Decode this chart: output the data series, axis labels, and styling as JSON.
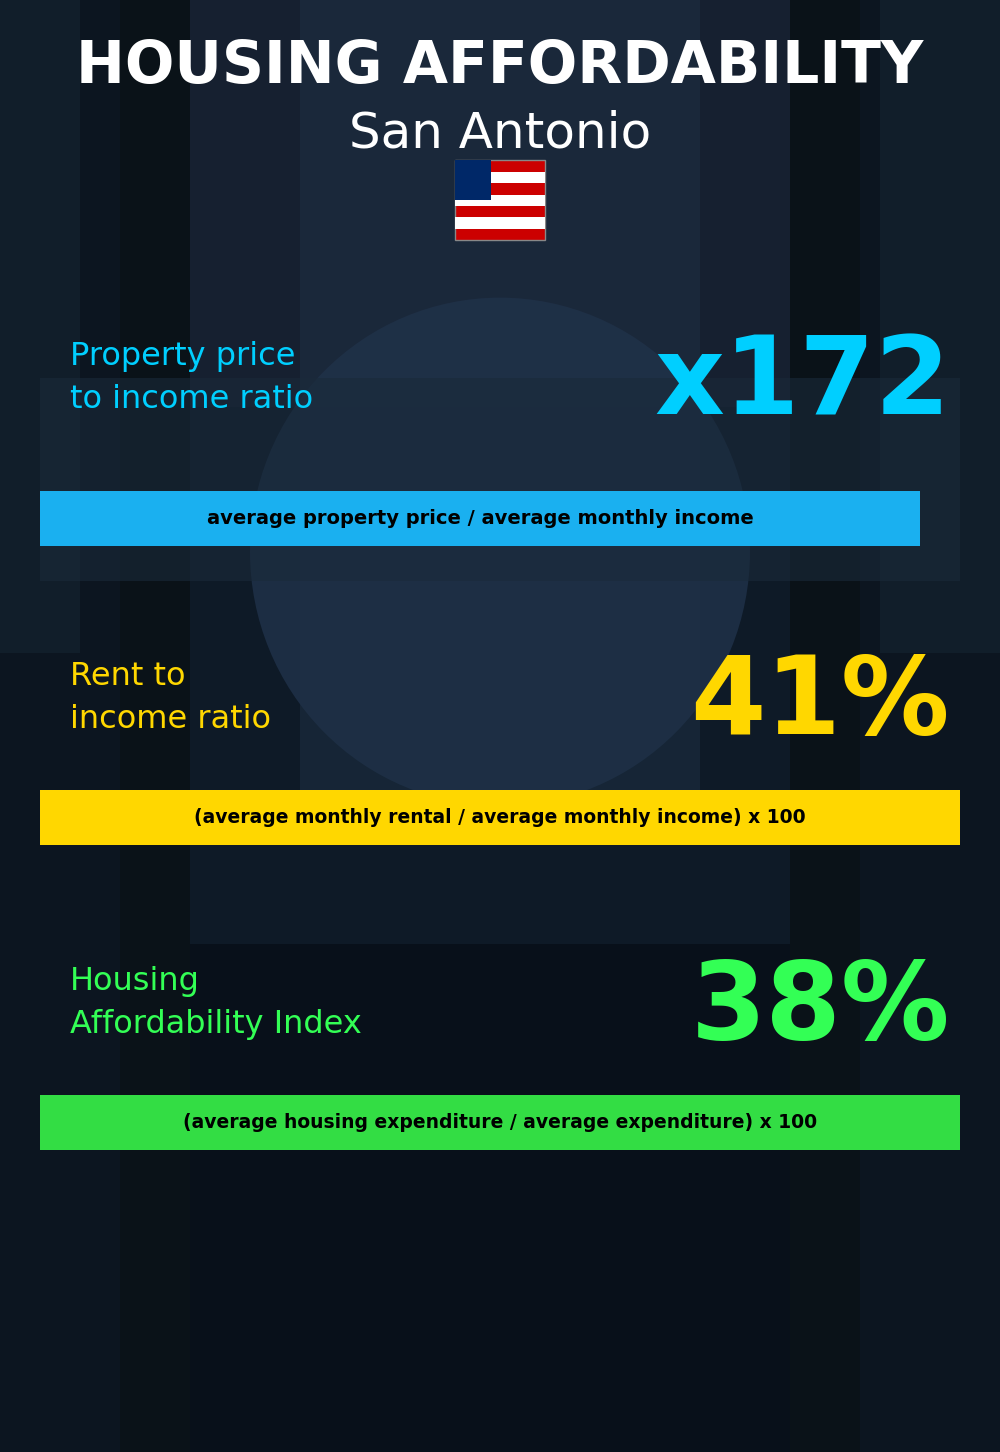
{
  "title_line1": "HOUSING AFFORDABILITY",
  "title_line2": "San Antonio",
  "section1_label": "Property price\nto income ratio",
  "section1_value": "x172",
  "section1_formula": "average property price / average monthly income",
  "section1_label_color": "#00cfff",
  "section1_value_color": "#00cfff",
  "section1_banner_color": "#1ab0f0",
  "section2_label": "Rent to\nincome ratio",
  "section2_value": "41%",
  "section2_formula": "(average monthly rental / average monthly income) x 100",
  "section2_label_color": "#ffd700",
  "section2_value_color": "#ffd700",
  "section2_banner_color": "#ffd700",
  "section3_label": "Housing\nAffordability Index",
  "section3_value": "38%",
  "section3_formula": "(average housing expenditure / average expenditure) x 100",
  "section3_label_color": "#33ff55",
  "section3_value_color": "#33ff55",
  "section3_banner_color": "#33dd44",
  "bg_color": "#0a1520",
  "title_color": "#ffffff",
  "formula_text_color": "#000000",
  "panel1_color": "#1a2a3a",
  "panel1_alpha": 0.6
}
